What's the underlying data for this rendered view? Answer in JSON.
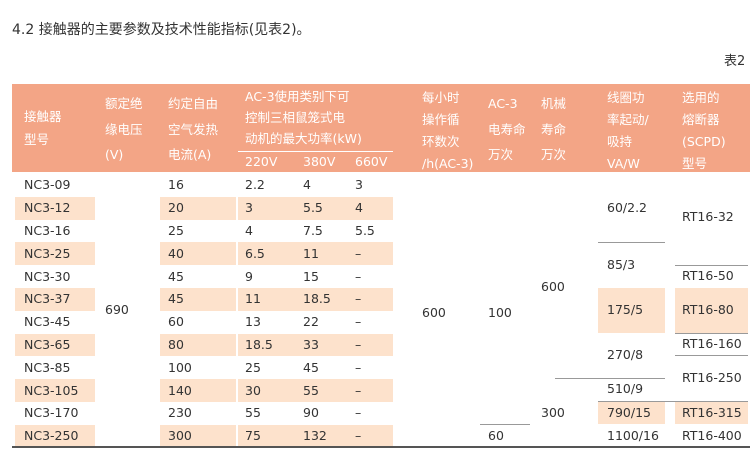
{
  "header": {
    "title": "4.2 接触器的主要参数及技术性能指标(见表2)。",
    "table_label": "表2"
  },
  "table": {
    "columns": [
      [
        "接触器",
        "型号"
      ],
      [
        "额定绝",
        "缘电压",
        "(V)"
      ],
      [
        "约定自由",
        "空气发热",
        "电流(A)"
      ],
      [
        "每小时",
        "操作循",
        "环数次",
        "/h(AC-3)"
      ],
      [
        "AC-3",
        "电寿命",
        "万次"
      ],
      [
        "机械",
        "寿命",
        "万次"
      ],
      [
        "线圈功",
        "率起动/",
        "吸持",
        "VA/W"
      ],
      [
        "选用的",
        "熔断器",
        "(SCPD)",
        "型号"
      ]
    ],
    "power_group": [
      "AC-3使用类别下可",
      "控制三相鼠笼式电",
      "动机的最大功率(kW)"
    ],
    "power_columns": [
      "220V",
      "380V",
      "660V"
    ],
    "rows": [
      [
        "NC3-09",
        "16",
        "2.2",
        "4",
        "3"
      ],
      [
        "NC3-12",
        "20",
        "3",
        "5.5",
        "4"
      ],
      [
        "NC3-16",
        "25",
        "4",
        "7.5",
        "5.5"
      ],
      [
        "NC3-25",
        "40",
        "6.5",
        "11",
        "–"
      ],
      [
        "NC3-30",
        "45",
        "9",
        "15",
        "–"
      ],
      [
        "NC3-37",
        "45",
        "11",
        "18.5",
        "–"
      ],
      [
        "NC3-45",
        "60",
        "13",
        "22",
        "–"
      ],
      [
        "NC3-65",
        "80",
        "18.5",
        "33",
        "–"
      ],
      [
        "NC3-85",
        "100",
        "25",
        "45",
        "–"
      ],
      [
        "NC3-105",
        "140",
        "30",
        "55",
        "–"
      ],
      [
        "NC3-170",
        "230",
        "55",
        "90",
        "–"
      ],
      [
        "NC3-250",
        "300",
        "75",
        "132",
        "–"
      ]
    ],
    "rated_voltage": "690",
    "cycles": "600",
    "electrical_life": [
      "100",
      "60"
    ],
    "mechanical_life": [
      "600",
      "300"
    ],
    "coil_power": [
      "60/2.2",
      "85/3",
      "175/5",
      "270/8",
      "510/9",
      "790/15",
      "1100/16"
    ],
    "fuse": [
      "RT16-32",
      "RT16-50",
      "RT16-80",
      "RT16-160",
      "RT16-250",
      "RT16-315",
      "RT16-400"
    ]
  }
}
